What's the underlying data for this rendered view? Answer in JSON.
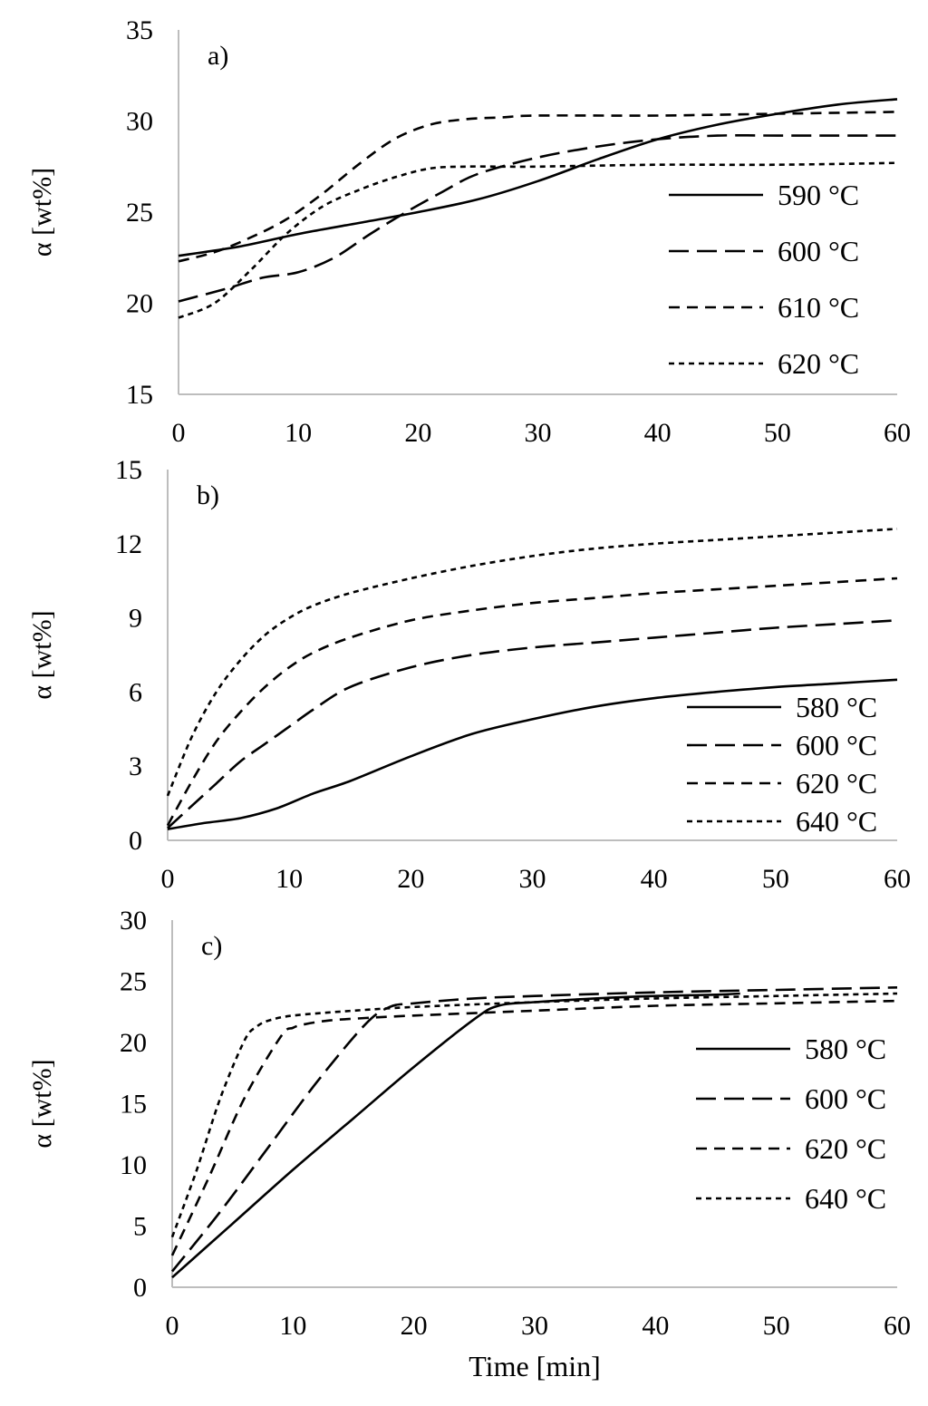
{
  "chart_data": [
    {
      "type": "line",
      "panel": "a)",
      "title": "",
      "xlabel": "",
      "ylabel": "α [wt%]",
      "xlim": [
        0,
        60
      ],
      "ylim": [
        15,
        35
      ],
      "xticks": [
        0,
        10,
        20,
        30,
        40,
        50,
        60
      ],
      "yticks": [
        15,
        20,
        25,
        30,
        35
      ],
      "legend_position": "right",
      "series": [
        {
          "name": "590 °C",
          "dash": "solid",
          "x": [
            0,
            5,
            10,
            15,
            20,
            25,
            30,
            35,
            40,
            45,
            50,
            55,
            60
          ],
          "y": [
            22.6,
            23.1,
            23.8,
            24.4,
            25.0,
            25.7,
            26.7,
            27.9,
            29.0,
            29.8,
            30.4,
            30.9,
            31.2
          ]
        },
        {
          "name": "600 °C",
          "dash": "long",
          "x": [
            0,
            4,
            7,
            10,
            13,
            16,
            19,
            22,
            25,
            30,
            35,
            40,
            45,
            50,
            55,
            60
          ],
          "y": [
            20.1,
            20.8,
            21.4,
            21.7,
            22.5,
            23.8,
            25.0,
            26.1,
            27.1,
            28.0,
            28.6,
            29.0,
            29.2,
            29.2,
            29.2,
            29.2
          ]
        },
        {
          "name": "610 °C",
          "dash": "medium",
          "x": [
            0,
            3,
            6,
            9,
            12,
            15,
            18,
            21,
            24,
            27,
            30,
            40,
            50,
            60
          ],
          "y": [
            22.3,
            22.8,
            23.6,
            24.6,
            26.0,
            27.6,
            29.0,
            29.8,
            30.1,
            30.2,
            30.3,
            30.3,
            30.4,
            30.5
          ]
        },
        {
          "name": "620 °C",
          "dash": "short",
          "x": [
            0,
            3,
            6,
            9,
            12,
            15,
            18,
            21,
            24,
            27,
            30,
            40,
            50,
            60
          ],
          "y": [
            19.2,
            20.0,
            21.8,
            23.8,
            25.3,
            26.2,
            26.9,
            27.4,
            27.5,
            27.5,
            27.5,
            27.6,
            27.6,
            27.7
          ]
        }
      ]
    },
    {
      "type": "line",
      "panel": "b)",
      "title": "",
      "xlabel": "",
      "ylabel": "α [wt%]",
      "xlim": [
        0,
        60
      ],
      "ylim": [
        0,
        15
      ],
      "xticks": [
        0,
        10,
        20,
        30,
        40,
        50,
        60
      ],
      "yticks": [
        0,
        3,
        6,
        9,
        12,
        15
      ],
      "legend_position": "bottom-right",
      "series": [
        {
          "name": "580 °C",
          "dash": "solid",
          "x": [
            0,
            3,
            6,
            9,
            12,
            15,
            20,
            25,
            30,
            35,
            40,
            45,
            50,
            55,
            60
          ],
          "y": [
            0.45,
            0.7,
            0.9,
            1.3,
            1.9,
            2.4,
            3.4,
            4.3,
            4.9,
            5.4,
            5.75,
            6.0,
            6.2,
            6.35,
            6.5
          ]
        },
        {
          "name": "600 °C",
          "dash": "long",
          "x": [
            0,
            2,
            4,
            6,
            8,
            10,
            12,
            15,
            20,
            25,
            30,
            35,
            40,
            45,
            50,
            55,
            60
          ],
          "y": [
            0.5,
            1.4,
            2.3,
            3.2,
            3.9,
            4.6,
            5.3,
            6.2,
            7.0,
            7.5,
            7.8,
            8.0,
            8.2,
            8.4,
            8.6,
            8.75,
            8.9
          ]
        },
        {
          "name": "620 °C",
          "dash": "medium",
          "x": [
            0,
            2,
            4,
            6,
            8,
            10,
            12,
            15,
            20,
            25,
            30,
            35,
            40,
            45,
            50,
            55,
            60
          ],
          "y": [
            0.6,
            2.4,
            4.0,
            5.2,
            6.2,
            7.0,
            7.6,
            8.2,
            8.9,
            9.3,
            9.6,
            9.8,
            10.0,
            10.15,
            10.3,
            10.45,
            10.6
          ]
        },
        {
          "name": "640 °C",
          "dash": "short",
          "x": [
            0,
            2,
            4,
            6,
            8,
            10,
            12,
            15,
            20,
            25,
            30,
            35,
            40,
            45,
            50,
            55,
            60
          ],
          "y": [
            1.8,
            4.2,
            6.0,
            7.3,
            8.3,
            9.0,
            9.5,
            10.0,
            10.6,
            11.1,
            11.5,
            11.8,
            12.0,
            12.15,
            12.3,
            12.45,
            12.6
          ]
        }
      ]
    },
    {
      "type": "line",
      "panel": "c)",
      "title": "",
      "xlabel": "Time [min]",
      "ylabel": "α [wt%]",
      "xlim": [
        0,
        60
      ],
      "ylim": [
        0,
        30
      ],
      "xticks": [
        0,
        10,
        20,
        30,
        40,
        50,
        60
      ],
      "yticks": [
        0,
        5,
        10,
        15,
        20,
        25,
        30
      ],
      "legend_position": "right",
      "series": [
        {
          "name": "580 °C",
          "dash": "solid",
          "x": [
            0,
            5,
            10,
            15,
            20,
            25,
            27,
            30,
            35,
            40,
            45,
            47
          ],
          "y": [
            0.8,
            5.2,
            9.6,
            13.8,
            18.0,
            21.9,
            23.0,
            23.3,
            23.6,
            23.8,
            23.9,
            24.0
          ]
        },
        {
          "name": "600 °C",
          "dash": "long",
          "x": [
            0,
            4,
            8,
            12,
            16,
            18,
            20,
            25,
            30,
            40,
            50,
            60
          ],
          "y": [
            1.3,
            6.2,
            11.5,
            16.8,
            21.5,
            22.9,
            23.2,
            23.6,
            23.8,
            24.1,
            24.3,
            24.5
          ]
        },
        {
          "name": "620 °C",
          "dash": "medium",
          "x": [
            0,
            3,
            6,
            9,
            10,
            11,
            13,
            16,
            20,
            30,
            40,
            50,
            60
          ],
          "y": [
            2.6,
            8.9,
            15.5,
            20.5,
            21.2,
            21.5,
            21.8,
            22.0,
            22.2,
            22.6,
            23.0,
            23.2,
            23.4
          ]
        },
        {
          "name": "640 °C",
          "dash": "short",
          "x": [
            0,
            2,
            4,
            6,
            7,
            8,
            10,
            15,
            20,
            30,
            40,
            50,
            60
          ],
          "y": [
            4.1,
            9.5,
            15.5,
            20.2,
            21.3,
            21.8,
            22.2,
            22.6,
            22.9,
            23.3,
            23.6,
            23.8,
            24.0
          ]
        }
      ]
    }
  ]
}
